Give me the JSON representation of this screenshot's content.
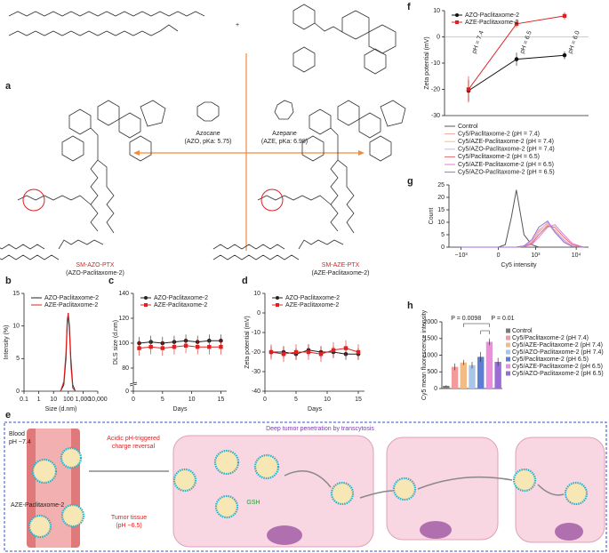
{
  "panel_labels": [
    "a",
    "b",
    "c",
    "d",
    "e",
    "f",
    "g",
    "h"
  ],
  "panel_a": {
    "plus": "+",
    "azocane": "Azocane",
    "azocane_info": "(AZO, pKa: 5.75)",
    "azepane": "Azepane",
    "azepane_info": "(AZE, pKa: 6.98)",
    "left_name": "SM-AZO-PTX",
    "left_sub": "(AZO-Paclitaxome-2)",
    "right_name": "SM-AZE-PTX",
    "right_sub": "(AZE-Paclitaxome-2)"
  },
  "panel_e": {
    "blood": "Blood",
    "blood_ph": "pH ~7.4",
    "particle": "AZE-Paclitaxome-2",
    "trigger_1": "Acidic pH-triggered",
    "trigger_2": "charge reversal",
    "tumor_1": "Tumor tissue",
    "tumor_2": "(pH ~6.5)",
    "penetration": "Deep tumor penetration by transcytosis",
    "gsh": "GSH"
  },
  "chart_data": [
    {
      "type": "line",
      "xlabel": "Size (d.nm)",
      "ylabel": "Intensity (%)",
      "xscale": "log",
      "x": [
        30,
        50,
        70,
        85,
        100,
        120,
        150,
        200,
        300
      ],
      "series": [
        {
          "name": "AZO-Paclitaxome-2",
          "color": "#222222",
          "marker": "none",
          "values": [
            0,
            1,
            5,
            10,
            12,
            10,
            5,
            1,
            0
          ]
        },
        {
          "name": "AZE-Paclitaxome-2",
          "color": "#e02020",
          "marker": "none",
          "values": [
            0,
            1.5,
            6,
            11,
            12,
            9,
            4,
            0.5,
            0
          ]
        }
      ],
      "xlim": [
        0.1,
        10000
      ],
      "xticks": [
        0.1,
        1,
        10,
        100,
        {
          "value": 1000,
          "label": "1,000"
        },
        {
          "value": 10000,
          "label": "10,000"
        }
      ],
      "ylim": [
        0,
        15
      ],
      "yticks": [
        0,
        5,
        10,
        15
      ],
      "legend": "upper left"
    },
    {
      "type": "line",
      "xlabel": "Days",
      "ylabel": "DLS size (d.nm)",
      "x": [
        1,
        3,
        5,
        7,
        9,
        11,
        13,
        15
      ],
      "series": [
        {
          "name": "AZO-Paclitaxome-2",
          "color": "#222222",
          "marker": "circle",
          "values": [
            100,
            101,
            100,
            101,
            102,
            101,
            102,
            102
          ],
          "errors": [
            5,
            5,
            5,
            5,
            5,
            5,
            5,
            5
          ]
        },
        {
          "name": "AZE-Paclitaxome-2",
          "color": "#e02020",
          "marker": "square",
          "values": [
            96,
            97,
            96,
            97,
            98,
            97,
            97,
            97
          ],
          "errors": [
            6,
            6,
            6,
            6,
            6,
            6,
            6,
            6
          ]
        }
      ],
      "xlim": [
        0,
        16
      ],
      "xticks": [
        0,
        5,
        10,
        15
      ],
      "ylim": [
        0,
        140
      ],
      "yticks": [
        0,
        80,
        100,
        120,
        140
      ],
      "y_axis_break": true,
      "legend": "upper left"
    },
    {
      "type": "line",
      "xlabel": "Days",
      "ylabel": "Zeta potential (mV)",
      "x": [
        1,
        3,
        5,
        7,
        9,
        11,
        13,
        15
      ],
      "series": [
        {
          "name": "AZO-Paclitaxome-2",
          "color": "#222222",
          "marker": "circle",
          "values": [
            -20,
            -20,
            -21,
            -19,
            -20,
            -20,
            -21,
            -21
          ],
          "errors": [
            3,
            3,
            3,
            3,
            3,
            3,
            3,
            3
          ]
        },
        {
          "name": "AZE-Paclitaxome-2",
          "color": "#e02020",
          "marker": "square",
          "values": [
            -20,
            -21,
            -20,
            -20,
            -21,
            -19,
            -18,
            -20
          ],
          "errors": [
            4,
            4,
            4,
            4,
            4,
            4,
            4,
            4
          ]
        }
      ],
      "xlim": [
        0,
        16
      ],
      "xticks": [
        0,
        5,
        10,
        15
      ],
      "ylim": [
        -40,
        10
      ],
      "yticks": [
        -40,
        -30,
        -20,
        -10,
        0,
        10
      ],
      "legend": "upper left"
    },
    {
      "type": "line",
      "ylabel": "Zeta potential (mV)",
      "categories": [
        "pH = 7.4",
        "pH = 6.5",
        "pH = 6.0"
      ],
      "series": [
        {
          "name": "AZO-Paclitaxome-2",
          "color": "#111111",
          "marker": "circle",
          "values": [
            -20.5,
            -8.5,
            -7
          ],
          "errors": [
            4,
            2.5,
            1.5
          ]
        },
        {
          "name": "AZE-Paclitaxome-2",
          "color": "#e02020",
          "marker": "square",
          "values": [
            -20,
            5,
            8
          ],
          "errors": [
            5,
            1.5,
            1.5
          ]
        }
      ],
      "ylim": [
        -30,
        10
      ],
      "yticks": [
        -30,
        -20,
        -10,
        0,
        10
      ],
      "zero_line": true,
      "legend": "upper left"
    },
    {
      "type": "line",
      "xlabel": "Cy5 intensity",
      "ylabel": "Count",
      "xscale": "biexponential",
      "x": [
        -1000,
        -300,
        0,
        100,
        200,
        300,
        500,
        800,
        1200,
        2000,
        3000,
        5000,
        8000,
        15000
      ],
      "series": [
        {
          "name": "Control",
          "color": "#555555",
          "marker": "none",
          "values": [
            0,
            0,
            0,
            1,
            12,
            23,
            5,
            1,
            0,
            0,
            0,
            0,
            0,
            0
          ]
        },
        {
          "name": "Cy5/Paclitaxome-2 (pH = 7.4)",
          "color": "#f4aaa2",
          "marker": "none",
          "values": [
            0,
            0,
            0,
            0,
            0,
            0,
            0.5,
            2,
            6,
            9,
            7,
            3,
            0.5,
            0
          ]
        },
        {
          "name": "Cy5/AZE-Paclitaxome-2 (pH = 7.4)",
          "color": "#f6bf8e",
          "marker": "none",
          "values": [
            0,
            0,
            0,
            0,
            0,
            0,
            0.5,
            2.5,
            7,
            9.5,
            6,
            2,
            0.3,
            0
          ]
        },
        {
          "name": "Cy5/AZO-Paclitaxome-2 (pH = 7.4)",
          "color": "#c9b6ec",
          "marker": "none",
          "values": [
            0,
            0,
            0,
            0,
            0,
            0,
            0.3,
            2,
            6.5,
            10,
            6.5,
            2.5,
            0.4,
            0
          ]
        },
        {
          "name": "Cy5/Paclitaxome-2 (pH = 6.5)",
          "color": "#e86a6a",
          "marker": "none",
          "values": [
            0,
            0,
            0,
            0,
            0,
            0,
            0.3,
            1.5,
            5,
            8.5,
            8,
            4,
            1,
            0
          ]
        },
        {
          "name": "Cy5/AZE-Paclitaxome-2 (pH = 6.5)",
          "color": "#e37bd6",
          "marker": "none",
          "values": [
            0,
            0,
            0,
            0,
            0,
            0,
            0.2,
            1,
            4,
            8,
            9,
            5,
            1.5,
            0
          ]
        },
        {
          "name": "Cy5/AZO-Paclitaxome-2 (pH = 6.5)",
          "color": "#9a6fe0",
          "marker": "none",
          "values": [
            0,
            0,
            0,
            0,
            0,
            0,
            0.5,
            3,
            8,
            10.5,
            6,
            2,
            0.3,
            0
          ]
        }
      ],
      "xlim": [
        -2000,
        20000
      ],
      "xticks": [
        {
          "value": -1000,
          "label": "−10³"
        },
        0,
        {
          "value": 1000,
          "label": "10³"
        },
        {
          "value": 10000,
          "label": "10⁴"
        }
      ],
      "ylim": [
        0,
        25
      ],
      "yticks": [
        0,
        5,
        10,
        15,
        20,
        25
      ],
      "legend": "above"
    },
    {
      "type": "bar",
      "ylabel": "Cy5 mean fluorescence intensity",
      "categories": [
        "Control",
        "Cy5/Paclitaxome-2 (pH 7.4)",
        "Cy5/AZE-Paclitaxome-2 (pH 7.4)",
        "Cy5/AZO-Paclitaxome-2 (pH 7.4)",
        "Cy5/Paclitaxome-2 (pH 6.5)",
        "Cy5/AZE-Paclitaxome-2 (pH 6.5)",
        "Cy5/AZO-Paclitaxome-2 (pH 6.5)"
      ],
      "values": [
        80,
        650,
        780,
        700,
        950,
        1400,
        800
      ],
      "errors": [
        20,
        100,
        80,
        100,
        150,
        100,
        120
      ],
      "colors": [
        "#7a7a7a",
        "#f29b9b",
        "#f3bb86",
        "#a9c6ea",
        "#5b7fd6",
        "#ea8fd8",
        "#9b6bd6"
      ],
      "ylim": [
        0,
        2000
      ],
      "yticks": [
        0,
        500,
        1000,
        1500,
        2000
      ],
      "annotations": [
        "P = 0.0098",
        "P = 0.01"
      ],
      "legend": "right"
    }
  ]
}
